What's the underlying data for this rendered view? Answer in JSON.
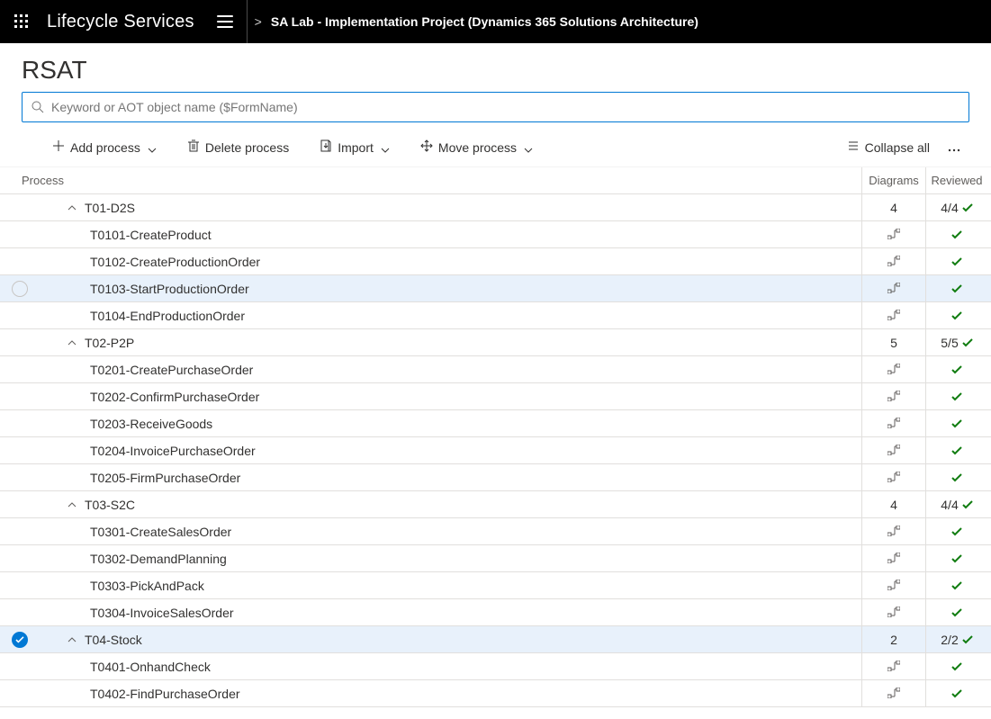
{
  "colors": {
    "topbar_bg": "#000000",
    "accent": "#0078d4",
    "check_green": "#107c10",
    "border": "#e1dfdd",
    "text": "#323130",
    "muted": "#605e5c",
    "selected_bg": "#e8f1fb"
  },
  "header": {
    "app_title": "Lifecycle Services",
    "breadcrumb_gt": ">",
    "project_name": "SA Lab - Implementation Project (Dynamics 365 Solutions Architecture)"
  },
  "page": {
    "title": "RSAT",
    "search_placeholder": "Keyword or AOT object name ($FormName)"
  },
  "toolbar": {
    "add_process": "Add process",
    "delete_process": "Delete process",
    "import": "Import",
    "move_process": "Move process",
    "collapse_all": "Collapse all"
  },
  "columns": {
    "process": "Process",
    "diagrams": "Diagrams",
    "reviewed": "Reviewed"
  },
  "rows": [
    {
      "type": "group",
      "label": "T01-D2S",
      "diagrams": "4",
      "reviewed": "4/4",
      "checked": true
    },
    {
      "type": "item",
      "label": "T0101-CreateProduct",
      "checked": true
    },
    {
      "type": "item",
      "label": "T0102-CreateProductionOrder",
      "checked": true
    },
    {
      "type": "item",
      "label": "T0103-StartProductionOrder",
      "checked": true,
      "hover": true
    },
    {
      "type": "item",
      "label": "T0104-EndProductionOrder",
      "checked": true
    },
    {
      "type": "group",
      "label": "T02-P2P",
      "diagrams": "5",
      "reviewed": "5/5",
      "checked": true
    },
    {
      "type": "item",
      "label": "T0201-CreatePurchaseOrder",
      "checked": true
    },
    {
      "type": "item",
      "label": "T0202-ConfirmPurchaseOrder",
      "checked": true
    },
    {
      "type": "item",
      "label": "T0203-ReceiveGoods",
      "checked": true
    },
    {
      "type": "item",
      "label": "T0204-InvoicePurchaseOrder",
      "checked": true
    },
    {
      "type": "item",
      "label": "T0205-FirmPurchaseOrder",
      "checked": true
    },
    {
      "type": "group",
      "label": "T03-S2C",
      "diagrams": "4",
      "reviewed": "4/4",
      "checked": true
    },
    {
      "type": "item",
      "label": "T0301-CreateSalesOrder",
      "checked": true
    },
    {
      "type": "item",
      "label": "T0302-DemandPlanning",
      "checked": true
    },
    {
      "type": "item",
      "label": "T0303-PickAndPack",
      "checked": true
    },
    {
      "type": "item",
      "label": "T0304-InvoiceSalesOrder",
      "checked": true
    },
    {
      "type": "group",
      "label": "T04-Stock",
      "diagrams": "2",
      "reviewed": "2/2",
      "checked": true,
      "selected": true
    },
    {
      "type": "item",
      "label": "T0401-OnhandCheck",
      "checked": true
    },
    {
      "type": "item",
      "label": "T0402-FindPurchaseOrder",
      "checked": true
    }
  ]
}
